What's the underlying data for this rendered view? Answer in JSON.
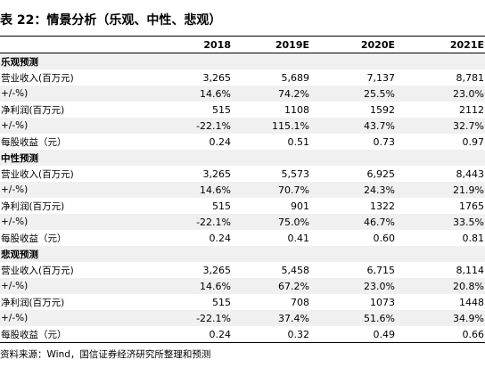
{
  "title": "表 22：情景分析（乐观、中性、悲观）",
  "table": {
    "header": [
      "2018",
      "2019E",
      "2020E",
      "2021E"
    ],
    "rows": [
      [
        "乐观预测"
      ],
      [
        "营业收入(百万元)",
        "3,265",
        "5,689",
        "7,137",
        "8,781"
      ],
      [
        "+/-%)",
        "14.6%",
        "74.2%",
        "25.5%",
        "23.0%"
      ],
      [
        "净利润(百万元)",
        "515",
        "1108",
        "1592",
        "2112"
      ],
      [
        "+/-%)",
        "-22.1%",
        "115.1%",
        "43.7%",
        "32.7%"
      ],
      [
        "每股收益（元）",
        "0.24",
        "0.51",
        "0.73",
        "0.97"
      ],
      [
        "中性预测"
      ],
      [
        "营业收入(百万元)",
        "3,265",
        "5,573",
        "6,925",
        "8,443"
      ],
      [
        "+/-%)",
        "14.6%",
        "70.7%",
        "24.3%",
        "21.9%"
      ],
      [
        "净利润(百万元)",
        "515",
        "901",
        "1322",
        "1765"
      ],
      [
        "+/-%)",
        "-22.1%",
        "75.0%",
        "46.7%",
        "33.5%"
      ],
      [
        "每股收益（元）",
        "0.24",
        "0.41",
        "0.60",
        "0.81"
      ],
      [
        "悲观预测"
      ],
      [
        "营业收入(百万元)",
        "3,265",
        "5,458",
        "6,715",
        "8,114"
      ],
      [
        "+/-%)",
        "14.6%",
        "67.2%",
        "23.0%",
        "20.8%"
      ],
      [
        "净利润(百万元)",
        "515",
        "708",
        "1073",
        "1448"
      ],
      [
        "+/-%)",
        "-22.1%",
        "37.4%",
        "51.6%",
        "34.9%"
      ],
      [
        "每股收益（元）",
        "0.24",
        "0.32",
        "0.49",
        "0.66"
      ]
    ]
  },
  "source": "资料来源：Wind，国信证券经济研究所整理和预测"
}
